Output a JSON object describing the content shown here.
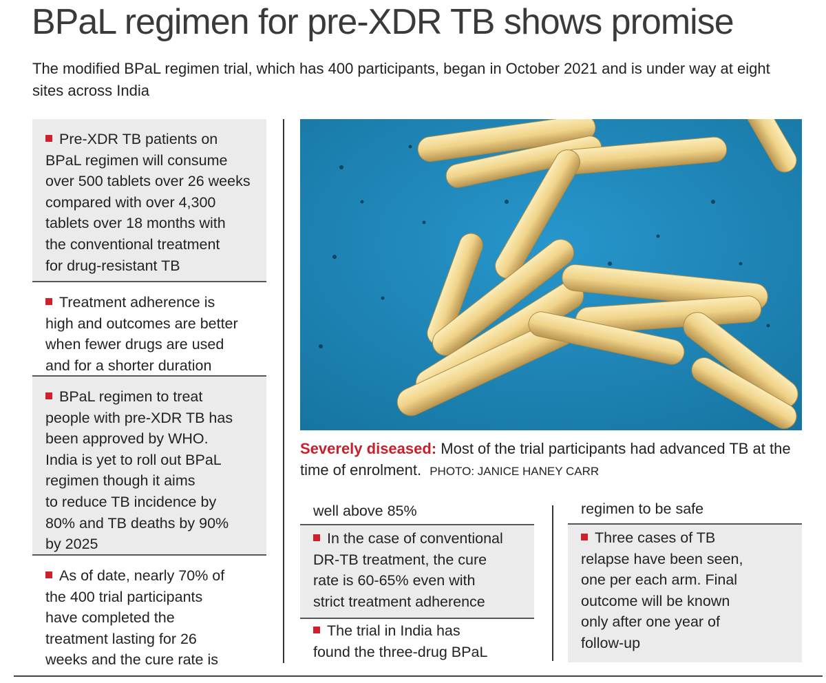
{
  "title": "BPaL regimen for pre-XDR TB shows promise",
  "subtitle": "The modified BPaL regimen trial, which has 400 participants, began in October 2021 and is under way at eight sites across India",
  "colors": {
    "bullet": "#d0202b",
    "caption_lead": "#c8202b",
    "box_gray": "#ebebeb",
    "photo_bg": "#1e8cc2",
    "bacteria": "#f0d389"
  },
  "left_column": [
    {
      "bullet": true,
      "lines": [
        "Pre-XDR TB patients on",
        "BPaL regimen will consume",
        "over 500 tablets over 26 weeks",
        "compared with over 4,300",
        "tablets over 18 months with",
        "the conventional treatment",
        "for drug-resistant TB"
      ]
    },
    {
      "bullet": true,
      "lines": [
        "Treatment adherence is",
        "high and outcomes are better",
        "when fewer drugs are used",
        "and for a shorter duration"
      ]
    },
    {
      "bullet": true,
      "lines": [
        "BPaL regimen to treat",
        "people with pre-XDR TB has",
        "been approved by WHO.",
        "India is yet to roll out BPaL",
        "regimen though it aims",
        "to reduce TB incidence by",
        "80% and TB deaths by 90%",
        "by 2025"
      ]
    },
    {
      "bullet": true,
      "lines": [
        "As of date, nearly 70% of",
        "the 400 trial participants",
        "have completed the",
        "treatment lasting for 26",
        "weeks and the cure rate is"
      ]
    }
  ],
  "photo": {
    "icon": "tb-bacteria-micrograph"
  },
  "caption": {
    "lead": "Severely diseased:",
    "text": "Most of the trial participants had advanced TB at the time of enrolment.",
    "credit": "PHOTO: JANICE HANEY CARR"
  },
  "middle_column": [
    {
      "bullet": false,
      "lines": [
        "well above 85%"
      ]
    },
    {
      "bullet": true,
      "lines": [
        "In the case of conventional",
        "DR-TB treatment, the cure",
        "rate is 60-65% even with",
        "strict treatment adherence"
      ]
    },
    {
      "bullet": true,
      "lines": [
        "The trial in India has",
        "found the three-drug BPaL"
      ]
    }
  ],
  "right_column": [
    {
      "bullet": false,
      "lines": [
        "regimen to be safe"
      ]
    },
    {
      "bullet": true,
      "lines": [
        "Three cases of TB",
        "relapse have been seen,",
        "one per each arm. Final",
        "outcome will be known",
        "only after one year of",
        "follow-up"
      ]
    }
  ]
}
